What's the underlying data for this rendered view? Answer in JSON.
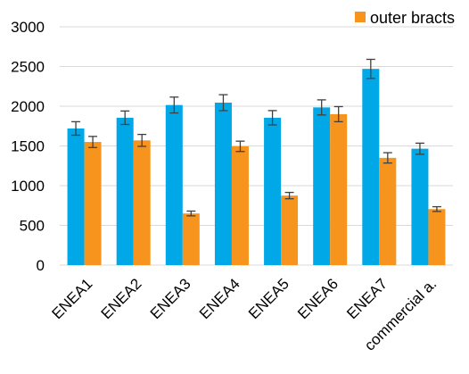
{
  "chart_data": {
    "type": "bar",
    "categories": [
      "ENEA1",
      "ENEA2",
      "ENEA3",
      "ENEA4",
      "ENEA5",
      "ENEA6",
      "ENEA7",
      "commercial a."
    ],
    "series": [
      {
        "values": [
          1720,
          1855,
          2015,
          2045,
          1855,
          1985,
          2470,
          1465
        ],
        "errors": [
          85,
          85,
          100,
          100,
          90,
          95,
          120,
          70
        ],
        "color": "#00a8e8"
      },
      {
        "name": "outer bracts",
        "values": [
          1550,
          1570,
          650,
          1495,
          875,
          1900,
          1350,
          705
        ],
        "errors": [
          70,
          75,
          30,
          65,
          40,
          95,
          65,
          30
        ],
        "color": "#f7941d"
      }
    ],
    "y_ticks": [
      "0",
      "500",
      "1000",
      "1500",
      "2000",
      "2500",
      "3000"
    ],
    "ylim": [
      0,
      3000
    ],
    "grid": true,
    "legend_position": "top-right",
    "title": "",
    "xlabel": "",
    "ylabel": ""
  }
}
